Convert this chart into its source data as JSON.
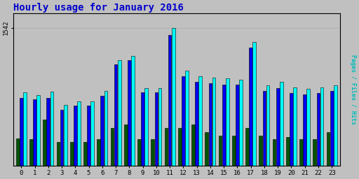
{
  "title": "Hourly usage for January 2016",
  "hours": [
    0,
    1,
    2,
    3,
    4,
    5,
    6,
    7,
    8,
    9,
    10,
    11,
    12,
    13,
    14,
    15,
    16,
    17,
    18,
    19,
    20,
    21,
    22,
    23
  ],
  "hits": [
    820,
    790,
    830,
    680,
    720,
    720,
    840,
    1180,
    1230,
    870,
    870,
    1542,
    1060,
    1000,
    985,
    975,
    960,
    1380,
    900,
    935,
    875,
    860,
    875,
    900
  ],
  "files": [
    760,
    740,
    760,
    630,
    670,
    670,
    780,
    1130,
    1180,
    820,
    820,
    1460,
    1000,
    940,
    920,
    910,
    910,
    1320,
    840,
    870,
    810,
    800,
    810,
    840
  ],
  "pages": [
    310,
    300,
    520,
    270,
    270,
    270,
    300,
    420,
    460,
    300,
    300,
    420,
    420,
    460,
    380,
    340,
    340,
    420,
    340,
    300,
    320,
    300,
    300,
    380
  ],
  "hits_color": "#00ffff",
  "files_color": "#0000ee",
  "pages_color": "#005500",
  "bg_color": "#c0c0c0",
  "plot_bg_color": "#c0c0c0",
  "title_color": "#0000cc",
  "border_color": "#000000",
  "ylabel_color": "#00bbbb",
  "ylabel_text": "Pages / Files / Hits",
  "ytick_label": "1542",
  "title_fontsize": 10,
  "xlim": [
    -0.6,
    23.6
  ],
  "ylim": [
    0,
    1700
  ]
}
